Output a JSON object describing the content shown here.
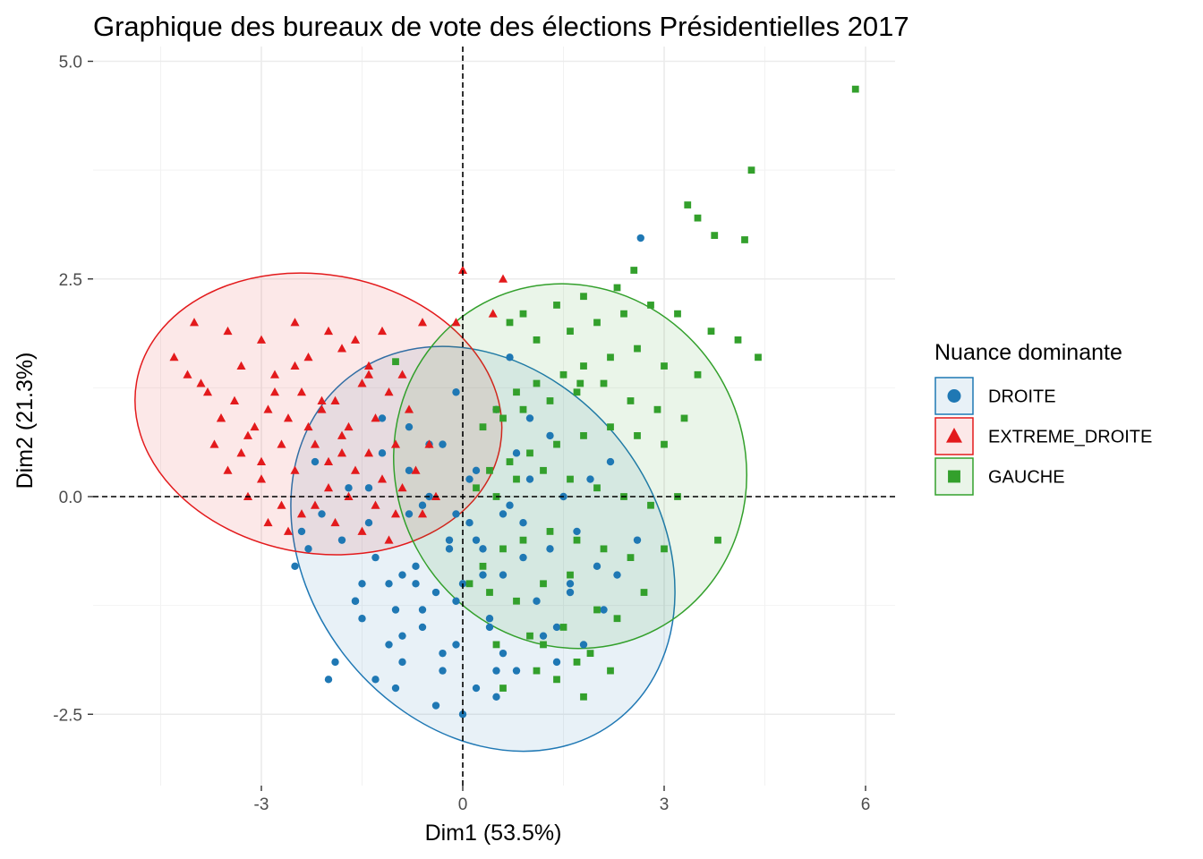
{
  "chart_data": {
    "type": "scatter",
    "title": "Graphique des bureaux de vote des élections  Présidentielles 2017",
    "xlabel": "Dim1 (53.5%)",
    "ylabel": "Dim2 (21.3%)",
    "xlim": [
      -5.4,
      6.5
    ],
    "ylim": [
      -3.3,
      5.1
    ],
    "x_ticks": [
      -3,
      0,
      3,
      6
    ],
    "x_tick_labels": [
      "-3",
      "0",
      "3",
      "6"
    ],
    "y_ticks": [
      -2.5,
      0.0,
      2.5,
      5.0
    ],
    "y_tick_labels": [
      "-2.5",
      "0.0",
      "2.5",
      "5.0"
    ],
    "grid": true,
    "reference_lines": {
      "x": 0,
      "y": 0,
      "style": "dashed"
    },
    "legend": {
      "title": "Nuance dominante",
      "position": "right",
      "entries": [
        {
          "label": "DROITE",
          "shape": "circle",
          "color": "#1f78b4"
        },
        {
          "label": "EXTREME_DROITE",
          "shape": "triangle",
          "color": "#e31a1c"
        },
        {
          "label": "GAUCHE",
          "shape": "square",
          "color": "#33a02c"
        }
      ]
    },
    "series": [
      {
        "name": "DROITE",
        "color": "#1f78b4",
        "shape": "circle",
        "ellipse": {
          "cx": 0.3,
          "cy": -0.6,
          "rx": 2.6,
          "ry": 2.5,
          "angle_deg": -38
        },
        "x": [
          2.65,
          0.7,
          -0.1,
          0.5,
          1.0,
          1.3,
          0.8,
          0.2,
          -0.3,
          -0.8,
          -1.2,
          -0.5,
          0.1,
          0.6,
          1.5,
          1.9,
          2.2,
          1.7,
          2.6,
          0.9,
          0.3,
          -0.2,
          -0.7,
          -1.4,
          -1.8,
          -2.1,
          -2.5,
          -2.4,
          -1.6,
          -1.0,
          -0.4,
          0.0,
          0.4,
          1.1,
          1.6,
          2.0,
          1.2,
          0.6,
          -0.1,
          -0.6,
          -1.1,
          -1.5,
          -1.9,
          -1.3,
          -0.9,
          -0.3,
          0.2,
          0.5,
          1.4,
          1.8,
          2.3,
          0.8,
          -0.8,
          -1.7,
          -2.2,
          -1.2,
          -0.5,
          0.1,
          0.7,
          1.0,
          -0.2,
          -0.9,
          -1.5,
          -0.6,
          0.3,
          0.9,
          1.3,
          -1.0,
          -2.0,
          -0.4,
          0.0,
          0.5,
          -0.7,
          -1.3,
          -0.1,
          1.6,
          2.1,
          1.4,
          -0.3,
          -1.1,
          -1.6,
          -0.8,
          0.6,
          0.2,
          -0.9,
          -0.1,
          0.4,
          -1.4,
          -2.3,
          -0.6
        ],
        "y": [
          2.97,
          1.6,
          1.2,
          1.0,
          0.9,
          0.7,
          0.5,
          0.3,
          0.6,
          0.8,
          0.5,
          0.0,
          -0.3,
          -0.2,
          0.0,
          0.2,
          0.4,
          -0.4,
          -0.5,
          -0.7,
          -0.9,
          -0.6,
          -0.8,
          -0.3,
          -0.5,
          -0.2,
          -0.8,
          -0.4,
          -1.2,
          -1.3,
          -1.1,
          -1.0,
          -1.4,
          -1.2,
          -1.1,
          -0.8,
          -1.6,
          -1.8,
          -1.7,
          -1.5,
          -1.7,
          -1.4,
          -1.9,
          -2.1,
          -1.9,
          -2.0,
          -2.2,
          -2.3,
          -1.9,
          -1.7,
          -0.9,
          -2.0,
          0.3,
          0.1,
          0.4,
          0.9,
          0.6,
          0.2,
          -0.1,
          0.2,
          -0.5,
          -0.9,
          -1.0,
          -1.3,
          -0.6,
          -0.3,
          -0.6,
          -2.2,
          -2.1,
          -2.4,
          -2.5,
          -2.0,
          -1.0,
          -0.7,
          -0.2,
          -1.0,
          -1.3,
          -1.5,
          -1.8,
          -1.0,
          -1.2,
          -0.2,
          -0.9,
          -0.5,
          -1.6,
          -1.2,
          -1.5,
          0.1,
          -0.6,
          -0.1
        ]
      },
      {
        "name": "EXTREME_DROITE",
        "color": "#e31a1c",
        "shape": "triangle",
        "ellipse": {
          "cx": -2.15,
          "cy": 0.95,
          "rx": 2.75,
          "ry": 1.6,
          "angle_deg": 10
        },
        "x": [
          0.0,
          0.6,
          0.45,
          -0.1,
          -0.6,
          -1.2,
          -1.6,
          -2.0,
          -2.5,
          -3.0,
          -3.5,
          -4.0,
          -4.3,
          -4.1,
          -3.8,
          -3.3,
          -2.8,
          -2.3,
          -1.8,
          -1.4,
          -0.9,
          -1.1,
          -1.5,
          -1.9,
          -2.4,
          -2.9,
          -3.4,
          -3.9,
          -3.6,
          -3.1,
          -2.6,
          -2.1,
          -1.7,
          -1.3,
          -0.8,
          -0.5,
          -1.0,
          -1.4,
          -1.8,
          -2.2,
          -2.7,
          -3.2,
          -3.7,
          -3.5,
          -3.0,
          -2.5,
          -2.0,
          -1.6,
          -1.2,
          -0.7,
          -0.4,
          -0.9,
          -1.3,
          -1.7,
          -2.2,
          -2.7,
          -3.2,
          -2.9,
          -2.4,
          -1.9,
          -1.5,
          -1.1,
          -2.6,
          -3.3,
          -2.0,
          -1.0,
          -0.6,
          -2.8,
          -2.3,
          -1.8,
          -3.0,
          -3.6,
          -2.5,
          -1.4,
          -2.1
        ],
        "y": [
          2.6,
          2.5,
          2.1,
          2.0,
          2.0,
          1.9,
          1.8,
          1.9,
          2.0,
          1.8,
          1.9,
          2.0,
          1.6,
          1.4,
          1.2,
          1.5,
          1.4,
          1.6,
          1.7,
          1.5,
          1.4,
          1.2,
          1.3,
          1.1,
          1.2,
          1.0,
          1.1,
          1.3,
          0.9,
          0.8,
          0.9,
          1.0,
          0.8,
          0.9,
          1.0,
          0.6,
          0.6,
          0.5,
          0.7,
          0.6,
          0.6,
          0.7,
          0.6,
          0.3,
          0.4,
          0.3,
          0.4,
          0.3,
          0.2,
          0.3,
          0.0,
          0.1,
          -0.1,
          0.0,
          -0.1,
          -0.1,
          0.0,
          -0.3,
          -0.2,
          -0.3,
          -0.4,
          -0.5,
          -0.4,
          0.5,
          0.1,
          -0.2,
          -0.2,
          1.2,
          0.8,
          0.5,
          0.2,
          0.9,
          1.5,
          1.4,
          1.1
        ]
      },
      {
        "name": "GAUCHE",
        "color": "#33a02c",
        "shape": "square",
        "ellipse": {
          "cx": 1.6,
          "cy": 0.35,
          "rx": 2.75,
          "ry": 2.0,
          "angle_deg": 62
        },
        "x": [
          5.85,
          4.3,
          3.35,
          3.5,
          3.75,
          4.2,
          2.55,
          2.3,
          1.8,
          1.4,
          0.9,
          0.7,
          1.1,
          1.6,
          2.0,
          2.4,
          2.8,
          3.2,
          3.7,
          4.1,
          4.4,
          3.5,
          3.0,
          2.6,
          2.2,
          1.8,
          1.5,
          1.1,
          0.8,
          0.5,
          0.3,
          0.6,
          0.9,
          1.3,
          1.7,
          2.1,
          2.5,
          2.9,
          3.3,
          3.0,
          2.6,
          2.2,
          1.8,
          1.4,
          1.0,
          0.7,
          0.4,
          0.2,
          0.5,
          0.8,
          1.2,
          1.6,
          2.0,
          2.4,
          2.8,
          3.2,
          3.8,
          3.0,
          2.5,
          2.1,
          1.7,
          1.3,
          0.9,
          0.6,
          0.3,
          0.1,
          0.4,
          0.8,
          1.2,
          1.6,
          2.0,
          1.5,
          1.0,
          0.5,
          1.9,
          2.3,
          2.7,
          1.1,
          0.6,
          1.4,
          1.8,
          2.2,
          1.7,
          1.2,
          -1.0,
          1.75
        ],
        "y": [
          4.68,
          3.75,
          3.35,
          3.2,
          3.0,
          2.95,
          2.6,
          2.4,
          2.3,
          2.2,
          2.1,
          2.0,
          1.8,
          1.9,
          2.0,
          2.1,
          2.2,
          2.1,
          1.9,
          1.8,
          1.6,
          1.4,
          1.5,
          1.7,
          1.6,
          1.5,
          1.4,
          1.3,
          1.2,
          1.0,
          0.8,
          0.9,
          1.0,
          1.1,
          1.2,
          1.3,
          1.1,
          1.0,
          0.9,
          0.6,
          0.7,
          0.8,
          0.7,
          0.6,
          0.5,
          0.4,
          0.3,
          0.1,
          0.0,
          0.2,
          0.3,
          0.2,
          0.1,
          0.0,
          -0.1,
          0.0,
          -0.5,
          -0.6,
          -0.7,
          -0.6,
          -0.5,
          -0.4,
          -0.5,
          -0.6,
          -0.8,
          -1.0,
          -1.1,
          -1.2,
          -1.0,
          -0.9,
          -1.3,
          -1.5,
          -1.6,
          -1.7,
          -1.8,
          -1.4,
          -1.1,
          -2.0,
          -2.2,
          -2.1,
          -2.3,
          -2.0,
          -1.9,
          -1.7,
          1.55,
          1.3
        ]
      }
    ]
  }
}
